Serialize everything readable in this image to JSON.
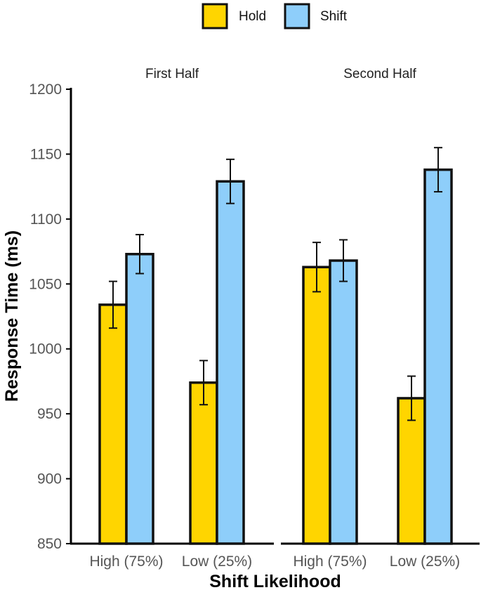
{
  "chart_data": {
    "type": "bar",
    "xlabel": "Shift Likelihood",
    "ylabel": "Response Time (ms)",
    "ylim": [
      850,
      1200
    ],
    "yticks": [
      850,
      900,
      950,
      1000,
      1050,
      1100,
      1150,
      1200
    ],
    "ytick_labels": [
      "850",
      "900",
      "950",
      "1000",
      "1050",
      "1100",
      "1150",
      "1200"
    ],
    "categories": [
      "High (75%)",
      "Low (25%)"
    ],
    "legend": {
      "position": "top",
      "entries": [
        {
          "name": "Hold",
          "color": "#FFD500"
        },
        {
          "name": "Shift",
          "color": "#8ECEFA"
        }
      ]
    },
    "facets": [
      {
        "title": "First Half",
        "series": [
          {
            "name": "Hold",
            "values": [
              1034,
              974
            ],
            "errors": [
              18,
              17
            ]
          },
          {
            "name": "Shift",
            "values": [
              1073,
              1129
            ],
            "errors": [
              15,
              17
            ]
          }
        ]
      },
      {
        "title": "Second Half",
        "series": [
          {
            "name": "Hold",
            "values": [
              1063,
              962
            ],
            "errors": [
              19,
              17
            ]
          },
          {
            "name": "Shift",
            "values": [
              1068,
              1138
            ],
            "errors": [
              16,
              17
            ]
          }
        ]
      }
    ]
  }
}
